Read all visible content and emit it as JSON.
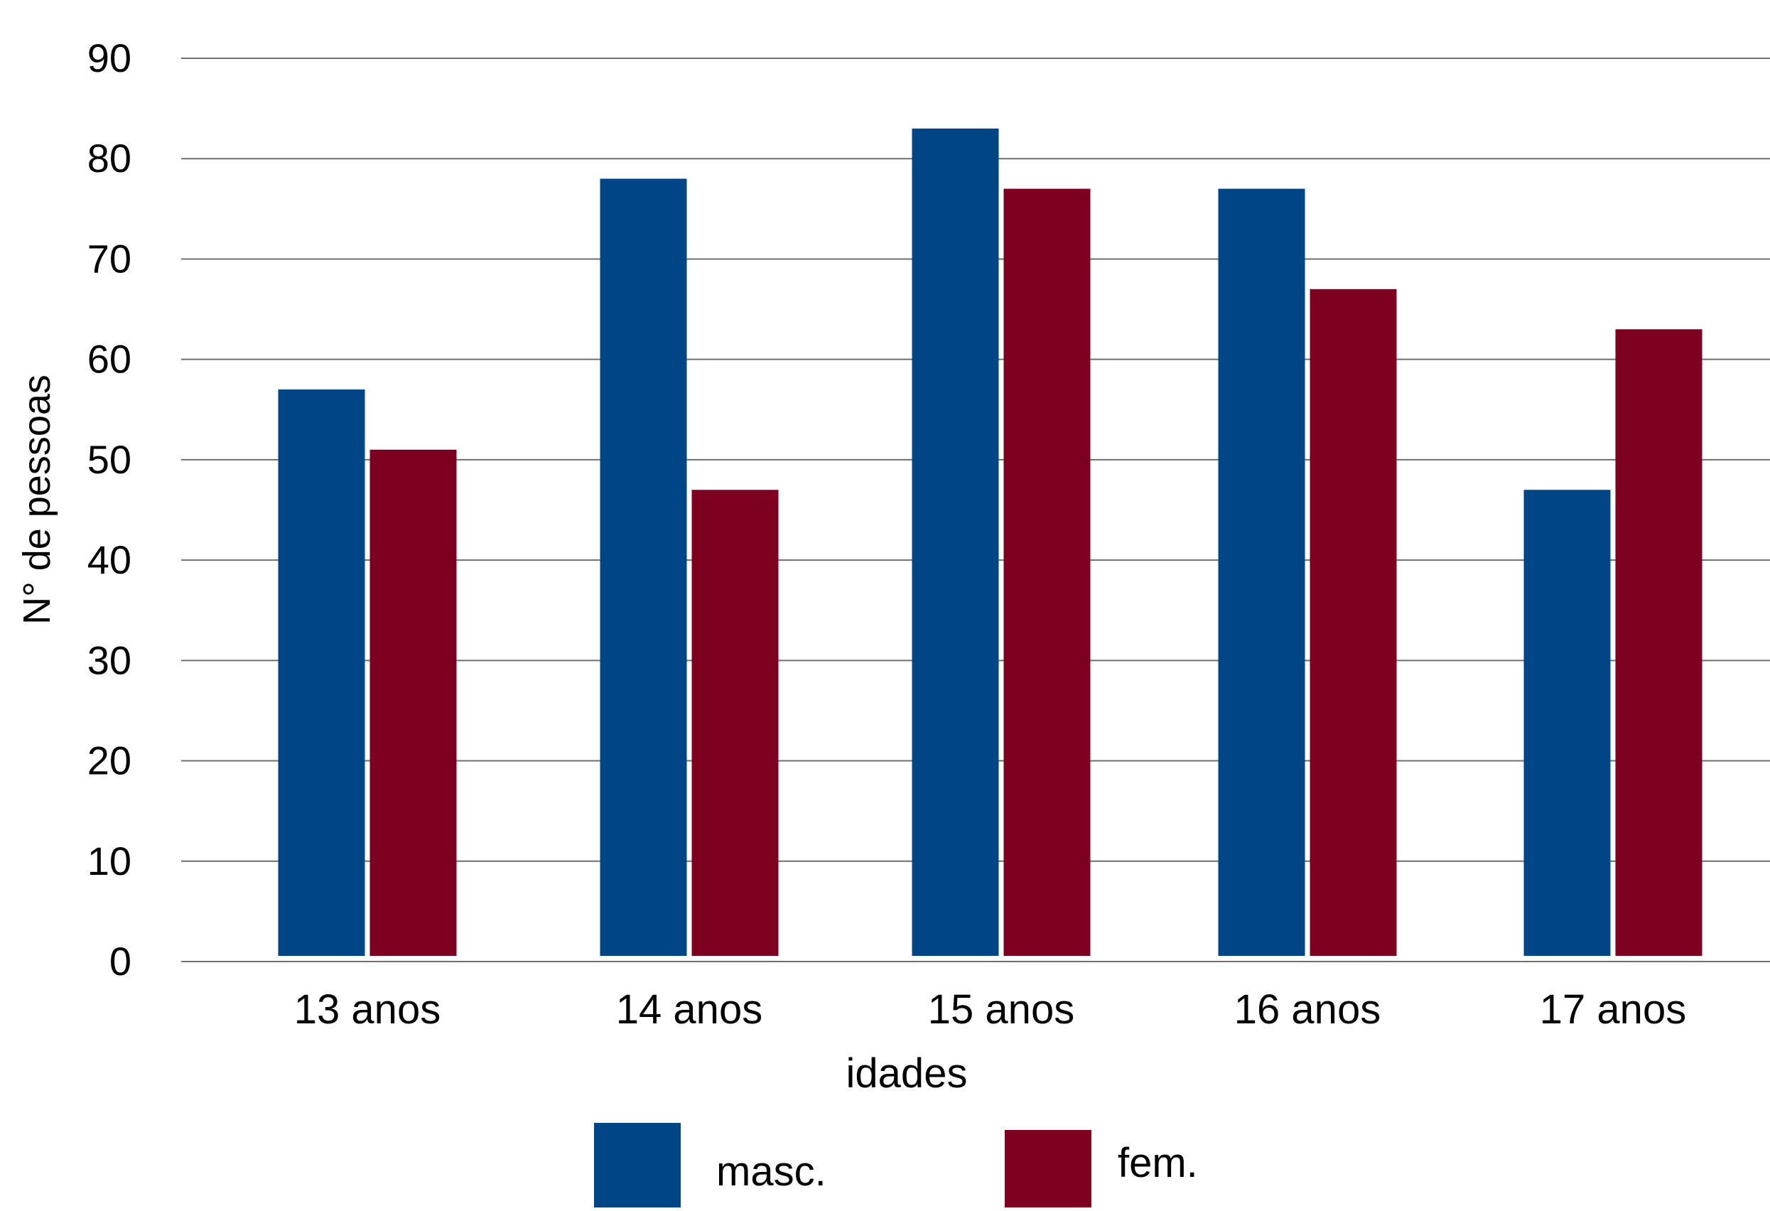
{
  "chart_data": {
    "type": "bar",
    "title": "",
    "xlabel": "idades",
    "ylabel": "N° de pessoas",
    "categories": [
      "13 anos",
      "14 anos",
      "15 anos",
      "16 anos",
      "17 anos"
    ],
    "series": [
      {
        "name": "masc.",
        "values": [
          57,
          78,
          83,
          77,
          47
        ],
        "color": "#004586"
      },
      {
        "name": "fem.",
        "values": [
          51,
          47,
          77,
          67,
          63
        ],
        "color": "#7e0021"
      }
    ],
    "ylim": [
      0,
      90
    ],
    "yticks": [
      "0",
      "10",
      "20",
      "30",
      "40",
      "50",
      "60",
      "70",
      "80",
      "90"
    ],
    "grid": true,
    "legend": "bottom",
    "colors": {
      "gridline": "#6f6f6f"
    }
  }
}
